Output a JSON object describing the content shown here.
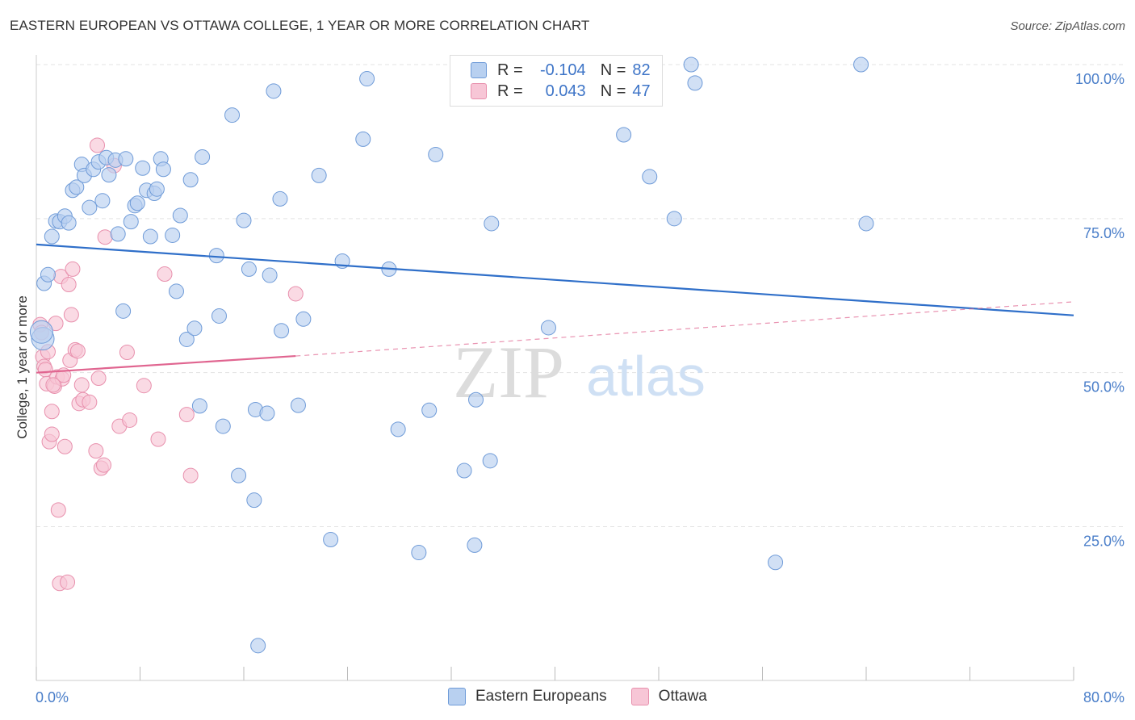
{
  "title": "EASTERN EUROPEAN VS OTTAWA COLLEGE, 1 YEAR OR MORE CORRELATION CHART",
  "source": "Source: ZipAtlas.com",
  "watermark": {
    "zip": "ZIP",
    "atlas": "atlas"
  },
  "colors": {
    "blue_fill": "#b8d0f0",
    "blue_stroke": "#6f9bd8",
    "blue_line": "#2f6fc9",
    "pink_fill": "#f7c6d6",
    "pink_stroke": "#e890ad",
    "pink_line": "#e06590",
    "grid": "#e3e3e3",
    "axis_text": "#4a7ec9"
  },
  "legend": {
    "r_label": "R =",
    "n_label": "N =",
    "rows": [
      {
        "r": "-0.104",
        "n": "82"
      },
      {
        "r": "0.043",
        "n": "47"
      }
    ]
  },
  "bottom_legend": [
    "Eastern Europeans",
    "Ottawa"
  ],
  "chart_data": {
    "type": "scatter",
    "title": "EASTERN EUROPEAN VS OTTAWA COLLEGE, 1 YEAR OR MORE CORRELATION CHART",
    "xlabel": "",
    "ylabel": "College, 1 year or more",
    "xlim": [
      0,
      80
    ],
    "ylim": [
      0,
      105
    ],
    "x_ticks_labels": [
      "0.0%",
      "80.0%"
    ],
    "y_ticks": [
      25,
      50,
      75,
      100
    ],
    "y_ticks_labels": [
      "25.0%",
      "50.0%",
      "75.0%",
      "100.0%"
    ],
    "grid": true,
    "series": [
      {
        "name": "Eastern Europeans",
        "r": -0.104,
        "n": 82,
        "trend": {
          "x": [
            0,
            80
          ],
          "y": [
            70.8,
            59.3
          ],
          "dashed_to": null
        },
        "points": [
          [
            0.5,
            55.5
          ],
          [
            0.6,
            64.5
          ],
          [
            0.9,
            65.9
          ],
          [
            1.2,
            72.1
          ],
          [
            1.5,
            74.6
          ],
          [
            1.8,
            74.5
          ],
          [
            2.2,
            75.4
          ],
          [
            2.5,
            74.3
          ],
          [
            2.8,
            79.6
          ],
          [
            3.1,
            80.1
          ],
          [
            3.5,
            83.8
          ],
          [
            3.7,
            82.0
          ],
          [
            4.1,
            76.8
          ],
          [
            4.4,
            83.0
          ],
          [
            4.8,
            84.2
          ],
          [
            5.1,
            77.9
          ],
          [
            5.4,
            84.9
          ],
          [
            5.6,
            82.1
          ],
          [
            6.1,
            84.5
          ],
          [
            6.3,
            72.5
          ],
          [
            6.7,
            60.0
          ],
          [
            6.9,
            84.7
          ],
          [
            7.3,
            74.5
          ],
          [
            7.6,
            77.1
          ],
          [
            7.8,
            77.5
          ],
          [
            8.2,
            83.2
          ],
          [
            8.5,
            79.6
          ],
          [
            8.8,
            72.1
          ],
          [
            9.1,
            79.1
          ],
          [
            9.3,
            79.8
          ],
          [
            9.6,
            84.7
          ],
          [
            9.8,
            83.0
          ],
          [
            10.5,
            72.3
          ],
          [
            10.8,
            63.2
          ],
          [
            11.1,
            75.5
          ],
          [
            11.6,
            55.4
          ],
          [
            11.9,
            81.3
          ],
          [
            12.2,
            57.2
          ],
          [
            12.6,
            44.6
          ],
          [
            12.8,
            85.0
          ],
          [
            13.9,
            69.0
          ],
          [
            14.1,
            59.2
          ],
          [
            14.4,
            41.3
          ],
          [
            15.1,
            91.8
          ],
          [
            15.6,
            33.3
          ],
          [
            16.0,
            74.7
          ],
          [
            16.4,
            66.8
          ],
          [
            16.8,
            29.3
          ],
          [
            16.9,
            44.0
          ],
          [
            17.1,
            5.7
          ],
          [
            17.8,
            43.4
          ],
          [
            18.0,
            65.8
          ],
          [
            18.3,
            95.7
          ],
          [
            18.8,
            78.2
          ],
          [
            18.9,
            56.8
          ],
          [
            20.2,
            44.7
          ],
          [
            20.6,
            58.7
          ],
          [
            21.8,
            82.0
          ],
          [
            22.7,
            22.9
          ],
          [
            23.6,
            68.1
          ],
          [
            25.2,
            87.9
          ],
          [
            25.5,
            97.7
          ],
          [
            27.2,
            66.8
          ],
          [
            27.9,
            40.8
          ],
          [
            29.5,
            20.8
          ],
          [
            30.3,
            43.9
          ],
          [
            30.8,
            85.4
          ],
          [
            33.0,
            34.1
          ],
          [
            33.8,
            22.0
          ],
          [
            33.9,
            45.6
          ],
          [
            35.0,
            35.7
          ],
          [
            35.1,
            74.2
          ],
          [
            39.5,
            57.3
          ],
          [
            45.3,
            88.6
          ],
          [
            47.3,
            81.8
          ],
          [
            49.2,
            75.0
          ],
          [
            50.5,
            100.0
          ],
          [
            50.8,
            97.0
          ],
          [
            57.0,
            19.2
          ],
          [
            63.6,
            100.0
          ],
          [
            64.0,
            74.2
          ],
          [
            0.4,
            56.6
          ]
        ]
      },
      {
        "name": "Ottawa",
        "r": 0.043,
        "n": 47,
        "trend": {
          "x": [
            0,
            20
          ],
          "y": [
            50.0,
            52.7
          ],
          "dashed_to": [
            80,
            61.5
          ]
        },
        "points": [
          [
            0.3,
            57.8
          ],
          [
            0.4,
            56.5
          ],
          [
            0.5,
            52.6
          ],
          [
            0.6,
            51.0
          ],
          [
            0.7,
            50.5
          ],
          [
            0.8,
            48.2
          ],
          [
            0.9,
            53.4
          ],
          [
            1.0,
            38.8
          ],
          [
            1.2,
            43.7
          ],
          [
            1.2,
            40.0
          ],
          [
            1.4,
            47.8
          ],
          [
            1.5,
            58.0
          ],
          [
            1.6,
            49.3
          ],
          [
            1.7,
            27.7
          ],
          [
            1.8,
            15.8
          ],
          [
            1.9,
            65.6
          ],
          [
            2.0,
            49.0
          ],
          [
            2.1,
            49.6
          ],
          [
            2.2,
            38.0
          ],
          [
            2.5,
            64.3
          ],
          [
            2.6,
            52.0
          ],
          [
            2.7,
            59.4
          ],
          [
            2.8,
            66.8
          ],
          [
            3.0,
            53.7
          ],
          [
            3.2,
            53.5
          ],
          [
            3.3,
            45.0
          ],
          [
            3.5,
            48.0
          ],
          [
            3.6,
            45.6
          ],
          [
            4.1,
            45.2
          ],
          [
            4.6,
            37.3
          ],
          [
            4.8,
            49.1
          ],
          [
            5.0,
            34.5
          ],
          [
            5.2,
            35.0
          ],
          [
            5.3,
            72.0
          ],
          [
            6.0,
            83.6
          ],
          [
            4.7,
            86.9
          ],
          [
            6.4,
            41.3
          ],
          [
            7.0,
            53.3
          ],
          [
            7.2,
            42.3
          ],
          [
            8.3,
            47.9
          ],
          [
            9.4,
            39.2
          ],
          [
            9.9,
            66.0
          ],
          [
            11.6,
            43.2
          ],
          [
            11.9,
            33.3
          ],
          [
            20.0,
            62.8
          ],
          [
            1.3,
            48.0
          ],
          [
            2.4,
            16.0
          ]
        ]
      }
    ]
  }
}
